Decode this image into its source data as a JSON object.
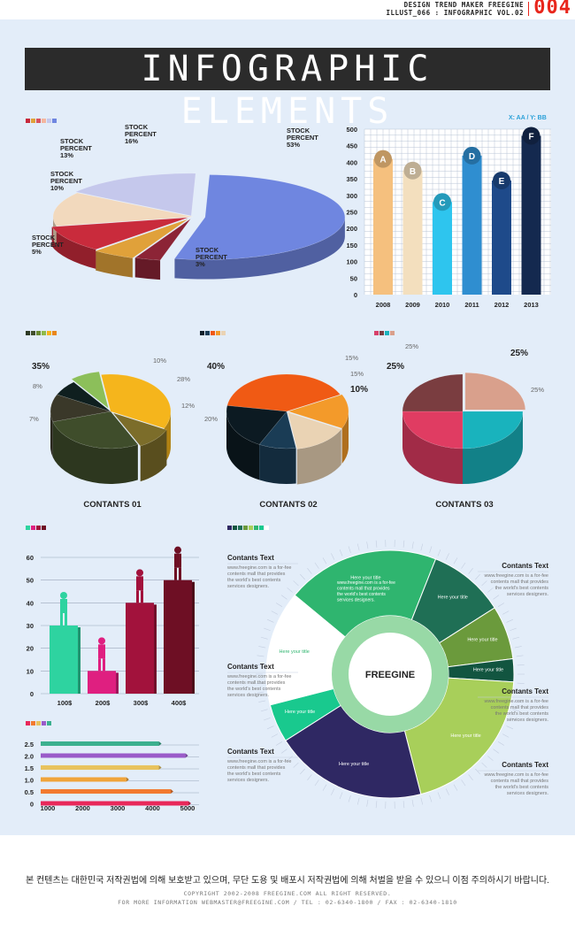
{
  "header": {
    "line1": "DESIGN TREND MAKER FREEGINE",
    "line2": "ILLUST_066 : INFOGRAPHIC VOL.02",
    "page_number": "004"
  },
  "title": "INFOGRAPHIC ELEMENTS",
  "footer": {
    "korean": "본 컨텐츠는 대한민국 저작권법에 의해 보호받고 있으며, 무단 도용 및 배포시 저작권법에 의해 처벌을 받을 수 있으니 이점 주의하시기 바랍니다.",
    "copyright": "COPYRIGHT 2002-2008 FREEGINE.COM ALL RIGHT RESERVED.",
    "contact": "FOR MORE INFORMATION WEBMASTER@FREEGINE.COM / TEL : 02-6340-1800 / FAX : 02-6340-1810"
  },
  "chart_data": [
    {
      "type": "pie",
      "title": "",
      "slices": [
        {
          "label": "STOCK PERCENT",
          "value": 53,
          "display": "53%",
          "color": "#6f86e0"
        },
        {
          "label": "STOCK PERCENT",
          "value": 3,
          "display": "3%",
          "color": "#8c2436"
        },
        {
          "label": "STOCK PERCENT",
          "value": 5,
          "display": "5%",
          "color": "#e0a13a"
        },
        {
          "label": "STOCK PERCENT",
          "value": 10,
          "display": "10%",
          "color": "#c92b3c"
        },
        {
          "label": "STOCK PERCENT",
          "value": 13,
          "display": "13%",
          "color": "#f2d9bd"
        },
        {
          "label": "STOCK PERCENT",
          "value": 16,
          "display": "16%",
          "color": "#c5c8ec"
        }
      ],
      "swatches": [
        "#c7283b",
        "#e0a13a",
        "#d9535f",
        "#f3b7a0",
        "#c5c8ec",
        "#6f86e0"
      ]
    },
    {
      "type": "bar",
      "axis_note": "X: AA / Y: BB",
      "categories": [
        "2008",
        "2009",
        "2010",
        "2011",
        "2012",
        "2013"
      ],
      "values": [
        410,
        375,
        280,
        420,
        345,
        480
      ],
      "markers": [
        "A",
        "B",
        "C",
        "D",
        "E",
        "F"
      ],
      "colors": [
        "#f5c07e",
        "#f3dfbe",
        "#2ec5ee",
        "#2f8ed0",
        "#1e4a8a",
        "#14294f"
      ],
      "ylim": [
        0,
        500
      ],
      "yticks": [
        0,
        50,
        100,
        150,
        200,
        250,
        300,
        350,
        400,
        450,
        500
      ],
      "grid": true
    },
    {
      "type": "pie",
      "title": "CONTANTS 01",
      "labels": [
        "35%",
        "10%",
        "28%",
        "12%",
        "7%",
        "8%"
      ],
      "values": [
        35,
        10,
        28,
        12,
        7,
        8
      ],
      "colors": [
        "#f5b51c",
        "#7c6d2a",
        "#3f4d2b",
        "#3a3829",
        "#0f1f1f",
        "#8cbf5a"
      ],
      "swatches": [
        "#2d3a24",
        "#414f2c",
        "#6a8a32",
        "#8fbb4a",
        "#f5b51c",
        "#e9861b"
      ]
    },
    {
      "type": "pie",
      "title": "CONTANTS 02",
      "labels": [
        "40%",
        "15%",
        "15%",
        "10%",
        "20%"
      ],
      "values": [
        40,
        15,
        15,
        10,
        20
      ],
      "colors": [
        "#f05a14",
        "#f39a2a",
        "#ead3b4",
        "#1a3c55",
        "#0c1a22"
      ],
      "swatches": [
        "#10202a",
        "#1a3c55",
        "#f05a14",
        "#f39a2a",
        "#ead3b4"
      ]
    },
    {
      "type": "pie",
      "title": "CONTANTS 03",
      "labels": [
        "25%",
        "25%",
        "25%",
        "25%"
      ],
      "values": [
        25,
        25,
        25,
        25
      ],
      "colors": [
        "#d9a08c",
        "#19b3bd",
        "#e03c62",
        "#7a3d40"
      ],
      "swatches": [
        "#d8406a",
        "#7a3d40",
        "#19b3bd",
        "#d9a08c"
      ]
    },
    {
      "type": "bar",
      "categories": [
        "100$",
        "200$",
        "300$",
        "400$"
      ],
      "values": [
        30,
        10,
        40,
        50
      ],
      "colors": [
        "#2ed3a0",
        "#df1f80",
        "#a2123c",
        "#6e0f24"
      ],
      "ylim": [
        0,
        60
      ],
      "yticks": [
        0,
        10,
        20,
        30,
        40,
        50,
        60
      ],
      "swatches": [
        "#2ed3a0",
        "#df1f80",
        "#a2123c",
        "#6e0f24"
      ]
    },
    {
      "type": "bar",
      "orientation": "horizontal",
      "categories": [
        "2.5",
        "2.0",
        "1.5",
        "1.0",
        "0.5",
        "0"
      ],
      "values": [
        4000,
        4900,
        4000,
        2900,
        4400,
        5000
      ],
      "colors": [
        "#3cb08f",
        "#9a5bc9",
        "#e8c35e",
        "#f0a43a",
        "#f27a30",
        "#e8285a"
      ],
      "xlim": [
        1000,
        5000
      ],
      "xticks": [
        1000,
        2000,
        3000,
        4000,
        5000
      ],
      "swatches": [
        "#e8285a",
        "#f27a30",
        "#e8c35e",
        "#9a5bc9",
        "#3cb08f"
      ]
    },
    {
      "type": "pie",
      "subtype": "donut",
      "center_label": "FREEGINE",
      "segments": [
        {
          "label": "Here your title",
          "value": 20,
          "color": "#2fb56f"
        },
        {
          "label": "Here your title",
          "value": 10,
          "color": "#1f6f55"
        },
        {
          "label": "Here your title",
          "value": 7,
          "color": "#6b9a3c"
        },
        {
          "label": "Here your title",
          "value": 3,
          "color": "#125540"
        },
        {
          "label": "Here your title",
          "value": 20,
          "color": "#a8cf5a"
        },
        {
          "label": "Here your title",
          "value": 20,
          "color": "#2f2863"
        },
        {
          "label": "Here your title",
          "value": 5,
          "color": "#19c98e"
        },
        {
          "label": "Here your title",
          "value": 15,
          "color": "#ffffff"
        }
      ],
      "swatches": [
        "#2f2863",
        "#125540",
        "#1f6f55",
        "#6b9a3c",
        "#a8cf5a",
        "#2fb56f",
        "#19c98e",
        "#ffffff"
      ],
      "text_blocks": [
        {
          "heading": "Contants Text",
          "body": [
            "www.freegine.com is a for-fee",
            "contents mall that provides",
            "the world's best contents",
            "services designers."
          ]
        },
        {
          "heading": "Contants Text",
          "body": [
            "www.freegine.com is a for-fee",
            "contents mall that provides",
            "the world's best contents",
            "services designers."
          ]
        },
        {
          "heading": "Contants Text",
          "body": [
            "www.freegine.com is a for-fee",
            "contents mall that provides",
            "the world's best contents",
            "services designers."
          ]
        },
        {
          "heading": "Contants Text",
          "body": [
            "www.freegine.com is a for-fee",
            "contents mall that provides",
            "the world's best contents",
            "services designers."
          ]
        },
        {
          "heading": "Contants Text",
          "body": [
            "www.freegine.com is a for-fee",
            "contents mall that provides",
            "the world's best contents",
            "services designers."
          ]
        },
        {
          "heading": "Contants Text",
          "body": [
            "www.freegine.com is a for-fee",
            "contents mall that provides",
            "the world's best contents",
            "services designers."
          ]
        }
      ],
      "inner_text": [
        "www.freegine.com is a for-fee",
        "contents mall that provides",
        "the world's best contents",
        "services designers."
      ]
    }
  ]
}
